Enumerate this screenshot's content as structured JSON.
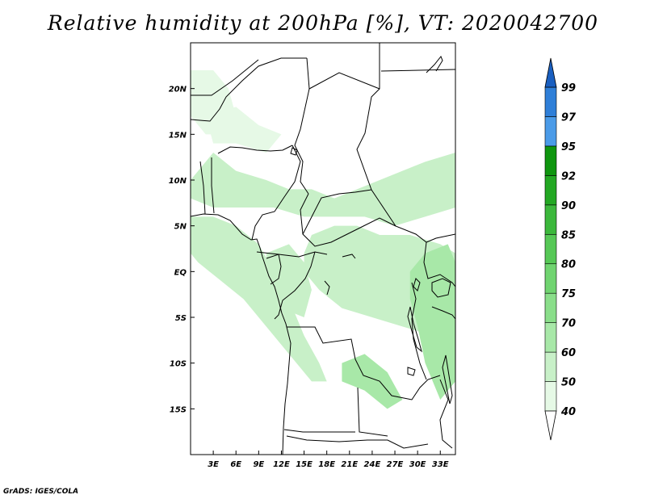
{
  "title": "Relative humidity at 200hPa [%], VT: 2020042700",
  "credit": "GrADS: IGES/COLA",
  "map": {
    "lon_range": [
      0,
      35
    ],
    "lat_range": [
      -20,
      25
    ],
    "x_ticks": [
      "3E",
      "6E",
      "9E",
      "12E",
      "15E",
      "18E",
      "21E",
      "24E",
      "27E",
      "30E",
      "33E"
    ],
    "x_tick_values": [
      3,
      6,
      9,
      12,
      15,
      18,
      21,
      24,
      27,
      30,
      33
    ],
    "y_ticks": [
      "20N",
      "15N",
      "10N",
      "5N",
      "EQ",
      "5S",
      "10S",
      "15S"
    ],
    "y_tick_values": [
      20,
      15,
      10,
      5,
      0,
      -5,
      -10,
      -15
    ]
  },
  "colorbar": {
    "labels": [
      "40",
      "50",
      "60",
      "70",
      "75",
      "80",
      "85",
      "90",
      "92",
      "95",
      "97",
      "99"
    ],
    "colors": [
      "#e6f9e6",
      "#c8f0c8",
      "#a8e8a8",
      "#8ade8a",
      "#70d470",
      "#56c856",
      "#3cb83c",
      "#23a823",
      "#0f960f",
      "#4b9be8",
      "#2f7fd8",
      "#1a5fc0"
    ]
  },
  "chart_data": {
    "type": "heatmap",
    "title": "Relative humidity at 200hPa [%], VT: 2020042700",
    "variable": "Relative humidity",
    "units": "%",
    "level": "200hPa",
    "valid_time": "2020042700",
    "lon_range": [
      0,
      35
    ],
    "lat_range": [
      -20,
      25
    ],
    "levels": [
      40,
      50,
      60,
      70,
      75,
      80,
      85,
      90,
      92,
      95,
      97,
      99
    ],
    "colors": [
      "#e6f9e6",
      "#c8f0c8",
      "#a8e8a8",
      "#8ade8a",
      "#70d470",
      "#56c856",
      "#3cb83c",
      "#23a823",
      "#0f960f",
      "#4b9be8",
      "#2f7fd8",
      "#1a5fc0"
    ],
    "regions": [
      {
        "name": "sahel-band",
        "level_index": 1,
        "poly": [
          [
            0,
            10
          ],
          [
            3,
            13
          ],
          [
            6,
            11
          ],
          [
            10,
            10
          ],
          [
            13,
            9
          ],
          [
            16,
            9
          ],
          [
            19,
            8
          ],
          [
            22,
            9
          ],
          [
            25,
            10
          ],
          [
            28,
            11
          ],
          [
            31,
            12
          ],
          [
            35,
            13
          ],
          [
            35,
            7
          ],
          [
            31,
            6
          ],
          [
            27,
            5
          ],
          [
            23,
            6
          ],
          [
            19,
            6
          ],
          [
            15,
            6
          ],
          [
            11,
            7
          ],
          [
            6,
            7
          ],
          [
            3,
            7
          ],
          [
            0,
            8
          ]
        ]
      },
      {
        "name": "west-coast",
        "level_index": 1,
        "poly": [
          [
            0,
            6
          ],
          [
            3,
            6
          ],
          [
            6,
            5
          ],
          [
            9,
            3
          ],
          [
            11,
            0
          ],
          [
            13,
            -3
          ],
          [
            15,
            -7
          ],
          [
            17,
            -10
          ],
          [
            18,
            -12
          ],
          [
            16,
            -12
          ],
          [
            13,
            -9
          ],
          [
            10,
            -6
          ],
          [
            7,
            -3
          ],
          [
            4,
            -1
          ],
          [
            1,
            1
          ],
          [
            0,
            2
          ]
        ]
      },
      {
        "name": "congo-north",
        "level_index": 1,
        "poly": [
          [
            16,
            4
          ],
          [
            19,
            5
          ],
          [
            22,
            5
          ],
          [
            25,
            4
          ],
          [
            29,
            4
          ],
          [
            33,
            3
          ],
          [
            35,
            2
          ],
          [
            35,
            -6
          ],
          [
            32,
            -7
          ],
          [
            28,
            -6
          ],
          [
            24,
            -5
          ],
          [
            20,
            -4
          ],
          [
            17,
            -2
          ],
          [
            15,
            0
          ],
          [
            15,
            2
          ]
        ]
      },
      {
        "name": "east-african-highlands",
        "level_index": 2,
        "poly": [
          [
            29,
            0
          ],
          [
            31,
            2
          ],
          [
            34,
            3
          ],
          [
            35,
            1
          ],
          [
            35,
            -12
          ],
          [
            33,
            -14
          ],
          [
            31,
            -10
          ],
          [
            30,
            -6
          ],
          [
            29,
            -3
          ]
        ]
      },
      {
        "name": "central-band",
        "level_index": 1,
        "poly": [
          [
            10,
            2
          ],
          [
            13,
            3
          ],
          [
            15,
            1
          ],
          [
            16,
            -2
          ],
          [
            15,
            -5
          ],
          [
            12,
            -4
          ],
          [
            10,
            -2
          ]
        ]
      },
      {
        "name": "north-patch",
        "level_index": 0,
        "poly": [
          [
            0,
            22
          ],
          [
            3,
            22
          ],
          [
            5,
            20
          ],
          [
            6,
            17
          ],
          [
            4,
            15
          ],
          [
            2,
            15
          ],
          [
            0,
            17
          ]
        ]
      },
      {
        "name": "north-streak",
        "level_index": 0,
        "poly": [
          [
            2,
            17
          ],
          [
            6,
            18
          ],
          [
            9,
            16
          ],
          [
            12,
            15
          ],
          [
            10,
            13
          ],
          [
            6,
            14
          ],
          [
            3,
            14
          ]
        ]
      },
      {
        "name": "east-patch",
        "level_index": 2,
        "poly": [
          [
            20,
            -10
          ],
          [
            23,
            -9
          ],
          [
            26,
            -11
          ],
          [
            28,
            -14
          ],
          [
            26,
            -15
          ],
          [
            23,
            -13
          ],
          [
            20,
            -12
          ]
        ]
      }
    ]
  }
}
